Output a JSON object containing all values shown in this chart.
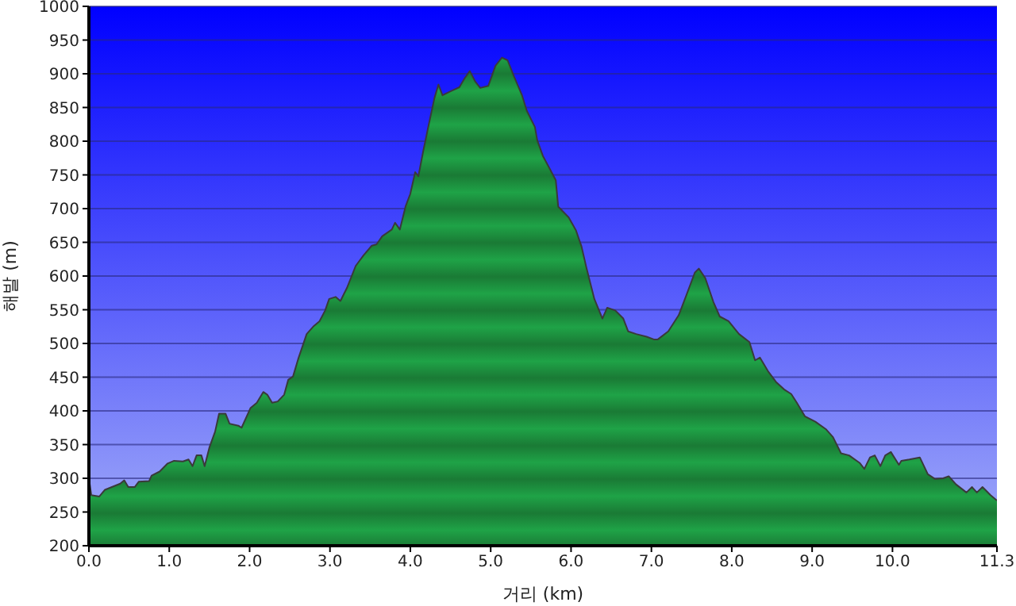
{
  "chart_data": {
    "type": "area",
    "xlabel": "거리   (km)",
    "ylabel": "해발 (m)",
    "color": "#1fa347",
    "x": [
      0,
      0.03,
      0.13,
      0.2,
      0.39,
      0.44,
      0.49,
      0.57,
      0.62,
      0.75,
      0.78,
      0.88,
      0.98,
      1.06,
      1.17,
      1.24,
      1.29,
      1.34,
      1.4,
      1.44,
      1.5,
      1.57,
      1.62,
      1.7,
      1.75,
      1.86,
      1.9,
      2.01,
      2.09,
      2.17,
      2.22,
      2.28,
      2.35,
      2.43,
      2.48,
      2.54,
      2.61,
      2.71,
      2.8,
      2.87,
      2.94,
      2.99,
      3.07,
      3.13,
      3.21,
      3.32,
      3.42,
      3.52,
      3.58,
      3.65,
      3.77,
      3.81,
      3.87,
      3.94,
      4.0,
      4.06,
      4.1,
      4.16,
      4.23,
      4.3,
      4.35,
      4.4,
      4.5,
      4.61,
      4.68,
      4.74,
      4.81,
      4.87,
      4.97,
      5.06,
      5.14,
      5.21,
      5.29,
      5.39,
      5.45,
      5.55,
      5.58,
      5.65,
      5.74,
      5.81,
      5.84,
      5.97,
      6.06,
      6.13,
      6.19,
      6.29,
      6.39,
      6.45,
      6.55,
      6.65,
      6.71,
      6.81,
      6.94,
      7.03,
      7.08,
      7.21,
      7.34,
      7.44,
      7.54,
      7.59,
      7.67,
      7.77,
      7.85,
      7.96,
      8.09,
      8.22,
      8.29,
      8.35,
      8.45,
      8.55,
      8.65,
      8.74,
      8.81,
      8.91,
      9.04,
      9.17,
      9.26,
      9.36,
      9.46,
      9.59,
      9.65,
      9.72,
      9.78,
      9.85,
      9.91,
      9.98,
      10.08,
      10.11,
      10.21,
      10.34,
      10.44,
      10.53,
      10.63,
      10.7,
      10.79,
      10.92,
      10.99,
      11.05,
      11.12,
      11.22,
      11.3
    ],
    "values": [
      300,
      275,
      273,
      283,
      292,
      297,
      287,
      287,
      295,
      296,
      304,
      310,
      322,
      326,
      325,
      328,
      318,
      334,
      334,
      318,
      346,
      369,
      396,
      396,
      381,
      378,
      375,
      404,
      412,
      428,
      424,
      412,
      414,
      424,
      446,
      451,
      479,
      514,
      526,
      533,
      549,
      566,
      569,
      563,
      582,
      615,
      631,
      645,
      647,
      659,
      669,
      679,
      669,
      703,
      722,
      754,
      748,
      785,
      825,
      864,
      884,
      868,
      874,
      880,
      894,
      904,
      888,
      879,
      882,
      912,
      924,
      920,
      896,
      868,
      845,
      821,
      801,
      778,
      758,
      742,
      703,
      687,
      668,
      644,
      613,
      566,
      537,
      553,
      549,
      537,
      518,
      514,
      510,
      506,
      506,
      518,
      542,
      573,
      605,
      611,
      597,
      562,
      540,
      533,
      514,
      502,
      475,
      479,
      459,
      443,
      432,
      425,
      412,
      392,
      384,
      373,
      361,
      337,
      334,
      323,
      314,
      331,
      334,
      318,
      334,
      339,
      320,
      326,
      328,
      331,
      306,
      299,
      300,
      303,
      291,
      279,
      287,
      279,
      287,
      275,
      267
    ],
    "xlim": [
      0,
      11.3
    ],
    "ylim": [
      200,
      1000
    ],
    "xticks": [
      {
        "value": 0,
        "label": "0.0"
      },
      {
        "value": 1,
        "label": "1.0"
      },
      {
        "value": 2,
        "label": "2.0"
      },
      {
        "value": 3,
        "label": "3.0"
      },
      {
        "value": 4,
        "label": "4.0"
      },
      {
        "value": 5,
        "label": "5.0"
      },
      {
        "value": 6,
        "label": "6.0"
      },
      {
        "value": 7,
        "label": "7.0"
      },
      {
        "value": 8,
        "label": "8.0"
      },
      {
        "value": 9,
        "label": "9.0"
      },
      {
        "value": 10,
        "label": "10.0"
      },
      {
        "value": 11.3,
        "label": "11.3"
      }
    ],
    "yticks": [
      200,
      250,
      300,
      350,
      400,
      450,
      500,
      550,
      600,
      650,
      700,
      750,
      800,
      850,
      900,
      950,
      1000
    ],
    "grid": "y"
  }
}
